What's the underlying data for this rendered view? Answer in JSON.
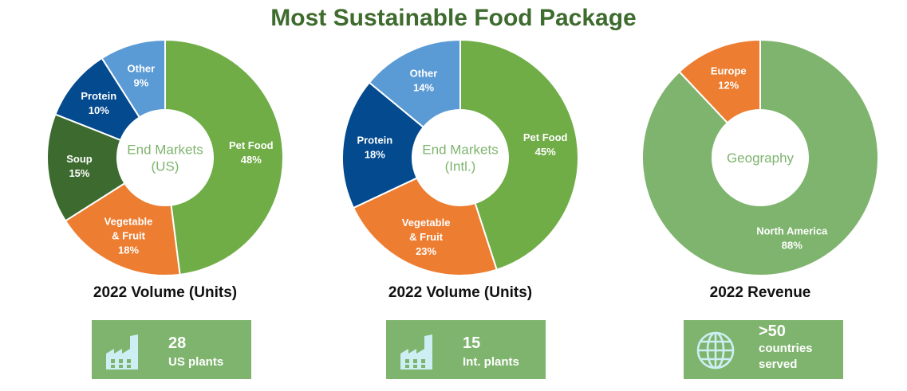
{
  "page": {
    "title": "Most Sustainable Food Package"
  },
  "colors": {
    "pet_food": "#70ad47",
    "vegetable_fruit": "#ed7d31",
    "soup": "#3d6b2f",
    "protein": "#034a8f",
    "other": "#5b9bd5",
    "europe": "#ed7d31",
    "north_america": "#7eb46d",
    "center_text": "#7eb46d",
    "card_bg": "#7eb46d"
  },
  "chart_data": [
    {
      "type": "pie",
      "center_label": [
        "End Markets",
        "(US)"
      ],
      "title": "2022 Volume (Units)",
      "slices": [
        {
          "label": [
            "Pet Food"
          ],
          "value": 48,
          "value_label": "48%",
          "color": "#70ad47"
        },
        {
          "label": [
            "Vegetable",
            "& Fruit"
          ],
          "value": 18,
          "value_label": "18%",
          "color": "#ed7d31"
        },
        {
          "label": [
            "Soup"
          ],
          "value": 15,
          "value_label": "15%",
          "color": "#3d6b2f"
        },
        {
          "label": [
            "Protein"
          ],
          "value": 10,
          "value_label": "10%",
          "color": "#034a8f"
        },
        {
          "label": [
            "Other"
          ],
          "value": 9,
          "value_label": "9%",
          "color": "#5b9bd5"
        }
      ]
    },
    {
      "type": "pie",
      "center_label": [
        "End Markets",
        "(Intl.)"
      ],
      "title": "2022 Volume (Units)",
      "slices": [
        {
          "label": [
            "Pet Food"
          ],
          "value": 45,
          "value_label": "45%",
          "color": "#70ad47"
        },
        {
          "label": [
            "Vegetable",
            "& Fruit"
          ],
          "value": 23,
          "value_label": "23%",
          "color": "#ed7d31"
        },
        {
          "label": [
            "Protein"
          ],
          "value": 18,
          "value_label": "18%",
          "color": "#034a8f"
        },
        {
          "label": [
            "Other"
          ],
          "value": 14,
          "value_label": "14%",
          "color": "#5b9bd5"
        }
      ]
    },
    {
      "type": "pie",
      "center_label": [
        "Geography"
      ],
      "title": "2022 Revenue",
      "slices": [
        {
          "label": [
            "North America"
          ],
          "value": 88,
          "value_label": "88%",
          "color": "#7eb46d"
        },
        {
          "label": [
            "Europe"
          ],
          "value": 12,
          "value_label": "12%",
          "color": "#ed7d31"
        }
      ]
    }
  ],
  "cards": [
    {
      "icon": "factory-icon",
      "number": "28",
      "text": "US plants"
    },
    {
      "icon": "factory-icon",
      "number": "15",
      "text": "Int. plants"
    },
    {
      "icon": "globe-icon",
      "number": ">50",
      "text_lines": [
        "countries",
        "served"
      ]
    }
  ]
}
